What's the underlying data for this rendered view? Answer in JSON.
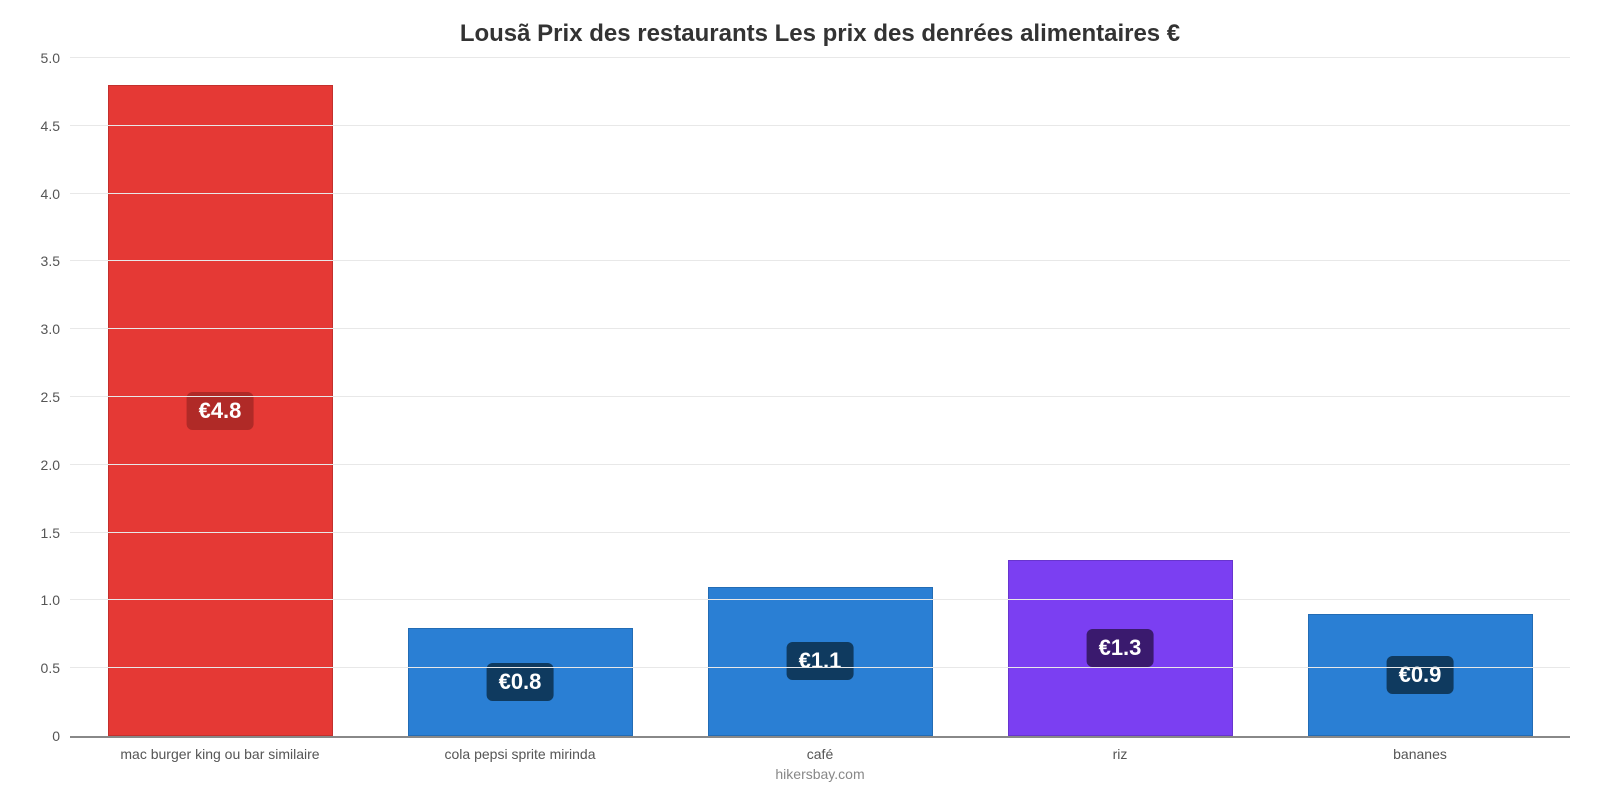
{
  "chart": {
    "type": "bar",
    "title": "Lousã Prix des restaurants Les prix des denrées alimentaires €",
    "title_fontsize": 24,
    "title_color": "#333333",
    "attribution": "hikersbay.com",
    "attribution_color": "#888888",
    "background_color": "#ffffff",
    "grid_color": "#e8e8e8",
    "axis_color": "#888888",
    "tick_label_color": "#555555",
    "tick_label_fontsize": 14,
    "x_label_fontsize": 14,
    "ylim": [
      0,
      5.0
    ],
    "ytick_step": 0.5,
    "yticks": [
      0,
      0.5,
      1.0,
      1.5,
      2.0,
      2.5,
      3.0,
      3.5,
      4.0,
      4.5,
      5.0
    ],
    "ytick_labels": [
      "0",
      "0.5",
      "1.0",
      "1.5",
      "2.0",
      "2.5",
      "3.0",
      "3.5",
      "4.0",
      "4.5",
      "5.0"
    ],
    "bar_width_pct": 75,
    "value_prefix": "€",
    "value_label_fontsize": 22,
    "value_label_text_color": "#ffffff",
    "value_label_radius": 6,
    "categories": [
      "mac burger king ou bar similaire",
      "cola pepsi sprite mirinda",
      "café",
      "riz",
      "bananes"
    ],
    "values": [
      4.8,
      0.8,
      1.1,
      1.3,
      0.9
    ],
    "value_labels": [
      "€4.8",
      "€0.8",
      "€1.1",
      "€1.3",
      "€0.9"
    ],
    "bar_colors": [
      "#e53935",
      "#2a7fd4",
      "#2a7fd4",
      "#7b3ff2",
      "#2a7fd4"
    ],
    "value_label_bg_colors": [
      "#b02a27",
      "#0f3a5f",
      "#0f3a5f",
      "#3a1a6e",
      "#0f3a5f"
    ]
  }
}
